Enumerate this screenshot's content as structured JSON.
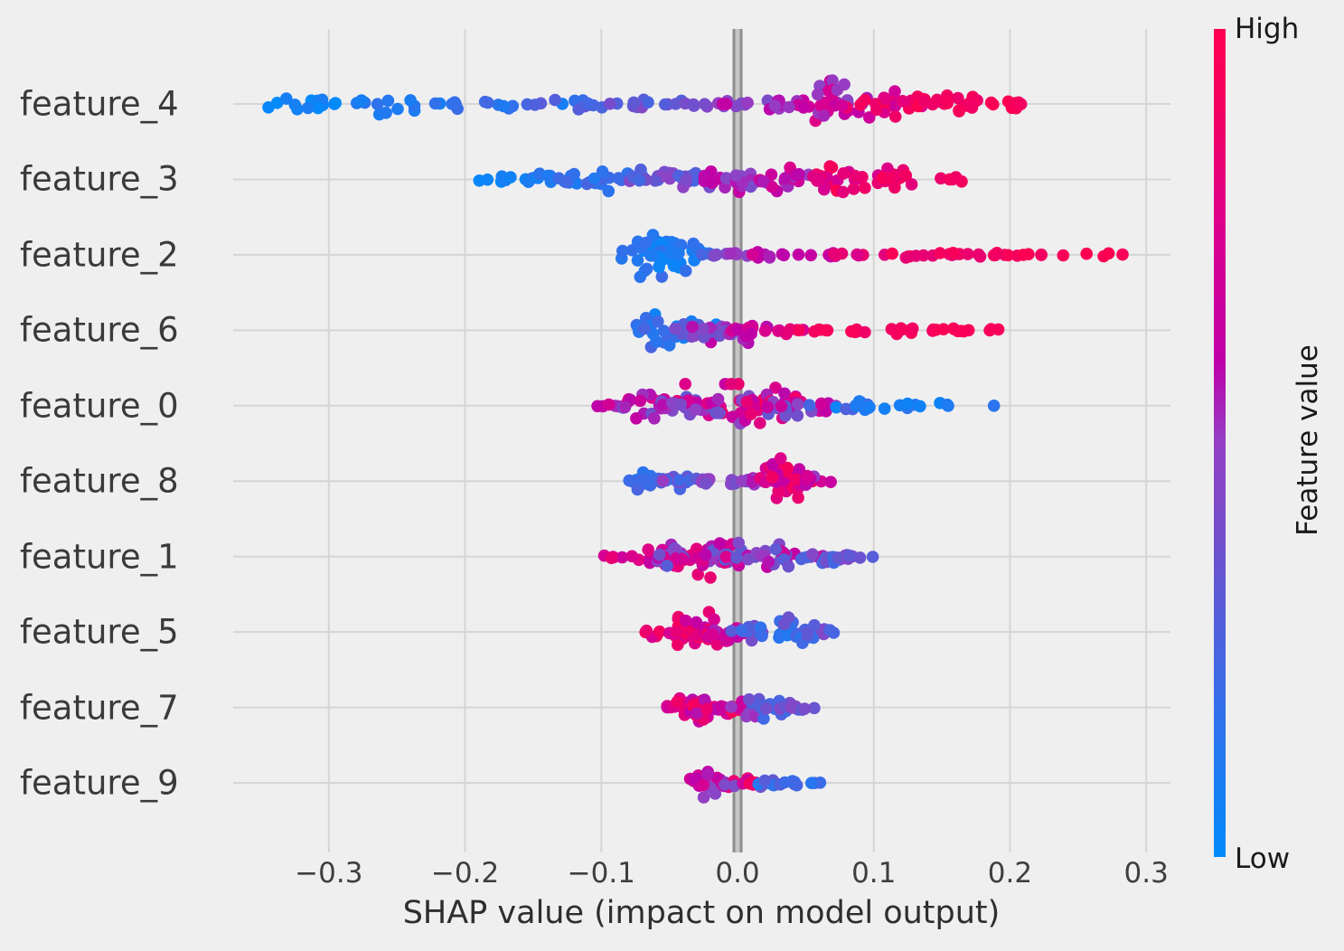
{
  "chart_data": {
    "type": "scatter",
    "variant": "shap-beeswarm-summary",
    "xlabel": "SHAP value (impact on model output)",
    "xlim": [
      -0.37,
      0.318
    ],
    "x_ticks": [
      {
        "value": -0.3,
        "label": "−0.3"
      },
      {
        "value": -0.2,
        "label": "−0.2"
      },
      {
        "value": -0.1,
        "label": "−0.1"
      },
      {
        "value": 0.0,
        "label": "0.0"
      },
      {
        "value": 0.1,
        "label": "0.1"
      },
      {
        "value": 0.2,
        "label": "0.2"
      },
      {
        "value": 0.3,
        "label": "0.3"
      }
    ],
    "grid": true,
    "zero_line": true,
    "colorbar": {
      "label": "Feature value",
      "high_label": "High",
      "low_label": "Low",
      "stops": [
        {
          "t": 0.0,
          "color": "#008bfb"
        },
        {
          "t": 0.2,
          "color": "#3a6ce8"
        },
        {
          "t": 0.38,
          "color": "#7050cc"
        },
        {
          "t": 0.5,
          "color": "#9440c4"
        },
        {
          "t": 0.6,
          "color": "#bf00a8"
        },
        {
          "t": 0.75,
          "color": "#d9008f"
        },
        {
          "t": 0.88,
          "color": "#ef0066"
        },
        {
          "t": 1.0,
          "color": "#ff0051"
        }
      ]
    },
    "colors": {
      "background": "#efeff0",
      "grid": "#d5d5d5",
      "zero_line_dark": "#8e8e8e",
      "zero_line_light": "#c6c6c6",
      "text": "#3a3a3a"
    },
    "features": [
      {
        "name": "feature_4",
        "shap_range": [
          -0.345,
          0.22
        ],
        "clusters": [
          {
            "x": -0.32,
            "sx": 0.02,
            "n": 14,
            "v": 0.04,
            "sv": 0.06,
            "sy": 12
          },
          {
            "x": -0.245,
            "sx": 0.02,
            "n": 12,
            "v": 0.1,
            "sv": 0.08,
            "sy": 12
          },
          {
            "x": -0.18,
            "sx": 0.022,
            "n": 13,
            "v": 0.15,
            "sv": 0.1,
            "sy": 8
          },
          {
            "x": -0.115,
            "sx": 0.02,
            "n": 12,
            "v": 0.25,
            "sv": 0.1,
            "sy": 6
          },
          {
            "x": -0.06,
            "sx": 0.02,
            "n": 16,
            "v": 0.33,
            "sv": 0.12,
            "sy": 6
          },
          {
            "x": -0.01,
            "sx": 0.015,
            "n": 12,
            "v": 0.45,
            "sv": 0.1,
            "sy": 5
          },
          {
            "x": 0.035,
            "sx": 0.016,
            "n": 14,
            "v": 0.55,
            "sv": 0.15,
            "sy": 8
          },
          {
            "x": 0.072,
            "sx": 0.016,
            "n": 30,
            "v": 0.62,
            "sv": 0.18,
            "sy": 26
          },
          {
            "x": 0.115,
            "sx": 0.018,
            "n": 26,
            "v": 0.82,
            "sv": 0.15,
            "sy": 14
          },
          {
            "x": 0.16,
            "sx": 0.018,
            "n": 20,
            "v": 0.93,
            "sv": 0.08,
            "sy": 10
          },
          {
            "x": 0.205,
            "sx": 0.01,
            "n": 6,
            "v": 0.95,
            "sv": 0.05,
            "sy": 5
          }
        ]
      },
      {
        "name": "feature_3",
        "shap_range": [
          -0.19,
          0.165
        ],
        "clusters": [
          {
            "x": -0.175,
            "sx": 0.01,
            "n": 8,
            "v": 0.05,
            "sv": 0.05,
            "sy": 4
          },
          {
            "x": -0.135,
            "sx": 0.016,
            "n": 14,
            "v": 0.12,
            "sv": 0.08,
            "sy": 9
          },
          {
            "x": -0.09,
            "sx": 0.018,
            "n": 20,
            "v": 0.2,
            "sv": 0.1,
            "sy": 13
          },
          {
            "x": -0.045,
            "sx": 0.018,
            "n": 24,
            "v": 0.35,
            "sv": 0.16,
            "sy": 15
          },
          {
            "x": -0.005,
            "sx": 0.016,
            "n": 24,
            "v": 0.5,
            "sv": 0.16,
            "sy": 15
          },
          {
            "x": 0.035,
            "sx": 0.016,
            "n": 20,
            "v": 0.62,
            "sv": 0.16,
            "sy": 13
          },
          {
            "x": 0.075,
            "sx": 0.018,
            "n": 26,
            "v": 0.85,
            "sv": 0.15,
            "sy": 18
          },
          {
            "x": 0.115,
            "sx": 0.013,
            "n": 16,
            "v": 0.86,
            "sv": 0.12,
            "sy": 12
          },
          {
            "x": 0.16,
            "sx": 0.006,
            "n": 5,
            "v": 0.9,
            "sv": 0.05,
            "sy": 6
          }
        ]
      },
      {
        "name": "feature_2",
        "shap_range": [
          -0.09,
          0.277
        ],
        "clusters": [
          {
            "x": -0.055,
            "sx": 0.014,
            "n": 55,
            "v": 0.12,
            "sv": 0.1,
            "sy": 30
          },
          {
            "x": -0.022,
            "sx": 0.006,
            "n": 4,
            "v": 0.3,
            "sv": 0.1,
            "sy": 3
          },
          {
            "x": -0.006,
            "sx": 0.008,
            "n": 6,
            "v": 0.45,
            "sv": 0.1,
            "sy": 3
          },
          {
            "x": 0.02,
            "sx": 0.013,
            "n": 8,
            "v": 0.55,
            "sv": 0.1,
            "sy": 3
          },
          {
            "x": 0.055,
            "sx": 0.018,
            "n": 8,
            "v": 0.65,
            "sv": 0.1,
            "sy": 3
          },
          {
            "x": 0.09,
            "sx": 0.013,
            "n": 7,
            "v": 0.8,
            "sv": 0.1,
            "sy": 3
          },
          {
            "x": 0.13,
            "sx": 0.018,
            "n": 10,
            "v": 0.9,
            "sv": 0.08,
            "sy": 3
          },
          {
            "x": 0.175,
            "sx": 0.018,
            "n": 12,
            "v": 0.92,
            "sv": 0.08,
            "sy": 3
          },
          {
            "x": 0.22,
            "sx": 0.013,
            "n": 6,
            "v": 0.95,
            "sv": 0.05,
            "sy": 3
          },
          {
            "x": 0.265,
            "sx": 0.008,
            "n": 4,
            "v": 0.95,
            "sv": 0.05,
            "sy": 3
          }
        ]
      },
      {
        "name": "feature_6",
        "shap_range": [
          -0.075,
          0.19
        ],
        "clusters": [
          {
            "x": -0.052,
            "sx": 0.013,
            "n": 30,
            "v": 0.15,
            "sv": 0.12,
            "sy": 22
          },
          {
            "x": -0.02,
            "sx": 0.011,
            "n": 22,
            "v": 0.45,
            "sv": 0.2,
            "sy": 18
          },
          {
            "x": 0.01,
            "sx": 0.011,
            "n": 20,
            "v": 0.65,
            "sv": 0.15,
            "sy": 14
          },
          {
            "x": 0.035,
            "sx": 0.007,
            "n": 6,
            "v": 0.8,
            "sv": 0.1,
            "sy": 4
          },
          {
            "x": 0.06,
            "sx": 0.007,
            "n": 5,
            "v": 0.9,
            "sv": 0.06,
            "sy": 3
          },
          {
            "x": 0.09,
            "sx": 0.011,
            "n": 6,
            "v": 0.92,
            "sv": 0.05,
            "sy": 4
          },
          {
            "x": 0.125,
            "sx": 0.013,
            "n": 10,
            "v": 0.94,
            "sv": 0.05,
            "sy": 4
          },
          {
            "x": 0.16,
            "sx": 0.011,
            "n": 8,
            "v": 0.95,
            "sv": 0.04,
            "sy": 3
          },
          {
            "x": 0.185,
            "sx": 0.004,
            "n": 3,
            "v": 0.95,
            "sv": 0.04,
            "sy": 3
          }
        ]
      },
      {
        "name": "feature_0",
        "shap_range": [
          -0.103,
          0.19
        ],
        "clusters": [
          {
            "x": -0.095,
            "sx": 0.007,
            "n": 4,
            "v": 0.6,
            "sv": 0.1,
            "sy": 3
          },
          {
            "x": -0.065,
            "sx": 0.013,
            "n": 20,
            "v": 0.55,
            "sv": 0.25,
            "sy": 14
          },
          {
            "x": -0.035,
            "sx": 0.013,
            "n": 30,
            "v": 0.55,
            "sv": 0.3,
            "sy": 24
          },
          {
            "x": -0.005,
            "sx": 0.013,
            "n": 30,
            "v": 0.6,
            "sv": 0.3,
            "sy": 24
          },
          {
            "x": 0.025,
            "sx": 0.013,
            "n": 26,
            "v": 0.6,
            "sv": 0.35,
            "sy": 20
          },
          {
            "x": 0.05,
            "sx": 0.011,
            "n": 14,
            "v": 0.5,
            "sv": 0.35,
            "sy": 12
          },
          {
            "x": 0.085,
            "sx": 0.011,
            "n": 10,
            "v": 0.15,
            "sv": 0.15,
            "sy": 6
          },
          {
            "x": 0.115,
            "sx": 0.013,
            "n": 8,
            "v": 0.1,
            "sv": 0.08,
            "sy": 4
          },
          {
            "x": 0.15,
            "sx": 0.011,
            "n": 5,
            "v": 0.1,
            "sv": 0.06,
            "sy": 3
          },
          {
            "x": 0.188,
            "sx": 0.002,
            "n": 1,
            "v": 0.15,
            "sv": 0.0,
            "sy": 1
          }
        ]
      },
      {
        "name": "feature_8",
        "shap_range": [
          -0.08,
          0.055
        ],
        "clusters": [
          {
            "x": -0.068,
            "sx": 0.011,
            "n": 18,
            "v": 0.2,
            "sv": 0.12,
            "sy": 13
          },
          {
            "x": -0.04,
            "sx": 0.009,
            "n": 14,
            "v": 0.3,
            "sv": 0.15,
            "sy": 9
          },
          {
            "x": -0.015,
            "sx": 0.011,
            "n": 14,
            "v": 0.45,
            "sv": 0.08,
            "sy": 5
          },
          {
            "x": 0.01,
            "sx": 0.009,
            "n": 10,
            "v": 0.5,
            "sv": 0.08,
            "sy": 5
          },
          {
            "x": 0.033,
            "sx": 0.011,
            "n": 32,
            "v": 0.75,
            "sv": 0.2,
            "sy": 26
          },
          {
            "x": 0.055,
            "sx": 0.005,
            "n": 6,
            "v": 0.6,
            "sv": 0.15,
            "sy": 10
          }
        ]
      },
      {
        "name": "feature_1",
        "shap_range": [
          -0.098,
          0.095
        ],
        "clusters": [
          {
            "x": -0.09,
            "sx": 0.007,
            "n": 5,
            "v": 0.75,
            "sv": 0.1,
            "sy": 3
          },
          {
            "x": -0.06,
            "sx": 0.013,
            "n": 18,
            "v": 0.6,
            "sv": 0.3,
            "sy": 14
          },
          {
            "x": -0.03,
            "sx": 0.013,
            "n": 30,
            "v": 0.6,
            "sv": 0.35,
            "sy": 24
          },
          {
            "x": 0.0,
            "sx": 0.013,
            "n": 26,
            "v": 0.55,
            "sv": 0.3,
            "sy": 20
          },
          {
            "x": 0.03,
            "sx": 0.013,
            "n": 24,
            "v": 0.5,
            "sv": 0.25,
            "sy": 16
          },
          {
            "x": 0.06,
            "sx": 0.011,
            "n": 16,
            "v": 0.35,
            "sv": 0.15,
            "sy": 12
          },
          {
            "x": 0.085,
            "sx": 0.007,
            "n": 6,
            "v": 0.35,
            "sv": 0.1,
            "sy": 5
          }
        ]
      },
      {
        "name": "feature_5",
        "shap_range": [
          -0.055,
          0.062
        ],
        "clusters": [
          {
            "x": -0.045,
            "sx": 0.009,
            "n": 22,
            "v": 0.85,
            "sv": 0.15,
            "sy": 18
          },
          {
            "x": -0.025,
            "sx": 0.009,
            "n": 26,
            "v": 0.8,
            "sv": 0.2,
            "sy": 22
          },
          {
            "x": -0.005,
            "sx": 0.007,
            "n": 12,
            "v": 0.65,
            "sv": 0.2,
            "sy": 10
          },
          {
            "x": 0.015,
            "sx": 0.009,
            "n": 14,
            "v": 0.3,
            "sv": 0.15,
            "sy": 10
          },
          {
            "x": 0.038,
            "sx": 0.011,
            "n": 22,
            "v": 0.25,
            "sv": 0.15,
            "sy": 16
          },
          {
            "x": 0.06,
            "sx": 0.007,
            "n": 8,
            "v": 0.3,
            "sv": 0.15,
            "sy": 8
          }
        ]
      },
      {
        "name": "feature_7",
        "shap_range": [
          -0.05,
          0.048
        ],
        "clusters": [
          {
            "x": -0.042,
            "sx": 0.007,
            "n": 12,
            "v": 0.7,
            "sv": 0.15,
            "sy": 10
          },
          {
            "x": -0.025,
            "sx": 0.009,
            "n": 24,
            "v": 0.75,
            "sv": 0.2,
            "sy": 20
          },
          {
            "x": -0.005,
            "sx": 0.007,
            "n": 16,
            "v": 0.8,
            "sv": 0.2,
            "sy": 14
          },
          {
            "x": 0.012,
            "sx": 0.007,
            "n": 14,
            "v": 0.35,
            "sv": 0.2,
            "sy": 12
          },
          {
            "x": 0.03,
            "sx": 0.009,
            "n": 18,
            "v": 0.3,
            "sv": 0.15,
            "sy": 14
          },
          {
            "x": 0.048,
            "sx": 0.005,
            "n": 6,
            "v": 0.35,
            "sv": 0.15,
            "sy": 6
          }
        ]
      },
      {
        "name": "feature_9",
        "shap_range": [
          -0.035,
          0.046
        ],
        "clusters": [
          {
            "x": -0.025,
            "sx": 0.007,
            "n": 20,
            "v": 0.6,
            "sv": 0.2,
            "sy": 16
          },
          {
            "x": -0.008,
            "sx": 0.005,
            "n": 10,
            "v": 0.65,
            "sv": 0.25,
            "sy": 8
          },
          {
            "x": 0.008,
            "sx": 0.005,
            "n": 8,
            "v": 0.8,
            "sv": 0.15,
            "sy": 5
          },
          {
            "x": 0.022,
            "sx": 0.007,
            "n": 10,
            "v": 0.25,
            "sv": 0.15,
            "sy": 6
          },
          {
            "x": 0.04,
            "sx": 0.007,
            "n": 8,
            "v": 0.2,
            "sv": 0.1,
            "sy": 4
          }
        ]
      }
    ]
  }
}
